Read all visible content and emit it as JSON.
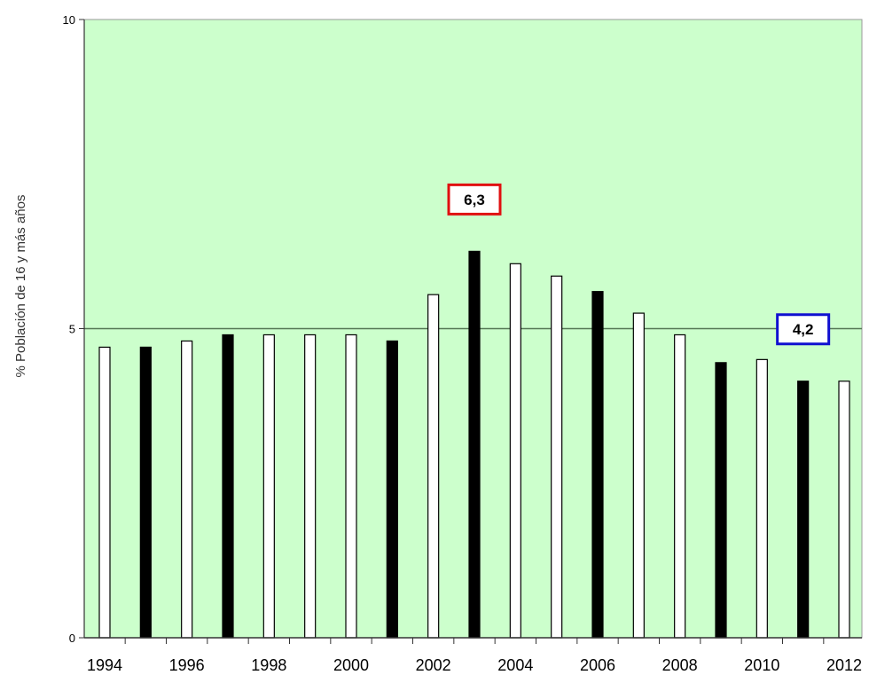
{
  "chart_data": {
    "type": "bar",
    "title": "",
    "xlabel": "",
    "ylabel": "% Población de 16 y más años",
    "ylim": [
      0,
      10
    ],
    "yticks": [
      "0",
      "5",
      "10"
    ],
    "grid": "horizontal line at 5",
    "x": [
      1994,
      1995,
      1996,
      1997,
      1998,
      1999,
      2000,
      2001,
      2002,
      2003,
      2004,
      2005,
      2006,
      2007,
      2008,
      2009,
      2010,
      2011,
      2012
    ],
    "xtick_labels": [
      "1994",
      "1996",
      "1998",
      "2000",
      "2002",
      "2004",
      "2006",
      "2008",
      "2010",
      "2012"
    ],
    "values": [
      4.7,
      4.7,
      4.8,
      4.9,
      4.9,
      4.9,
      4.9,
      4.8,
      5.55,
      6.25,
      6.05,
      5.85,
      5.6,
      5.25,
      4.9,
      4.45,
      4.5,
      4.15,
      4.15
    ],
    "bar_fills": [
      "white",
      "black",
      "white",
      "black",
      "white",
      "white",
      "white",
      "black",
      "white",
      "black",
      "white",
      "white",
      "black",
      "white",
      "white",
      "black",
      "white",
      "black",
      "white"
    ],
    "annotations": [
      {
        "text": "6,3",
        "year": 2003,
        "border_color": "#e01010"
      },
      {
        "text": "4,2",
        "year": 2011,
        "border_color": "#1010d0"
      }
    ],
    "colors": {
      "plot_background": "#ccffcc",
      "bar_outline": "#000000",
      "gridline": "#557755"
    }
  }
}
